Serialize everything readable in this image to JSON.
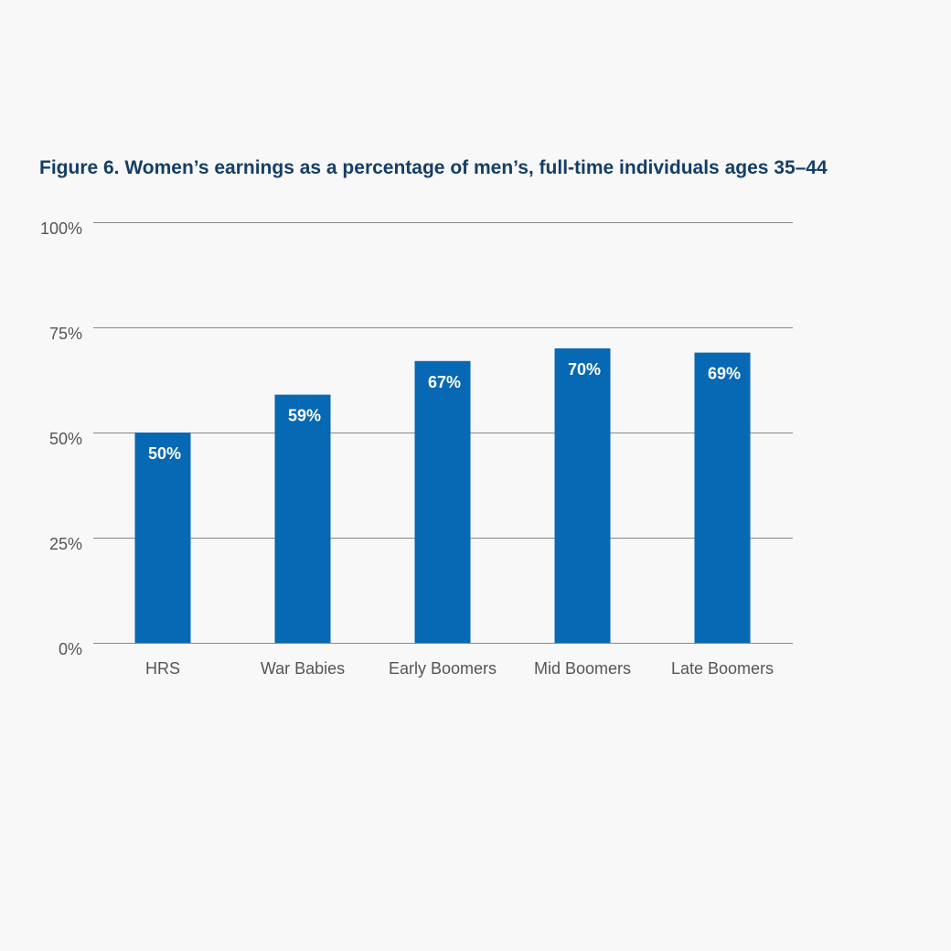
{
  "chart_data": {
    "type": "bar",
    "title": "Figure 6. Women’s earnings as a percentage of men’s, full-time individuals ages 35–44",
    "xlabel": "",
    "ylabel": "",
    "categories": [
      "HRS",
      "War Babies",
      "Early Boomers",
      "Mid Boomers",
      "Late Boomers"
    ],
    "values": [
      50,
      59,
      67,
      70,
      69
    ],
    "data_labels": [
      "50%",
      "59%",
      "67%",
      "70%",
      "69%"
    ],
    "ylim": [
      0,
      100
    ],
    "y_ticks": [
      0,
      25,
      50,
      75,
      100
    ],
    "y_tick_labels": [
      "0%",
      "25%",
      "50%",
      "75%",
      "100%"
    ],
    "grid": true,
    "legend": "none",
    "colors": {
      "bar": "#0768b3",
      "title": "#143e66",
      "grid": "#888888",
      "text": "#555555",
      "data_label": "#ffffff"
    }
  }
}
